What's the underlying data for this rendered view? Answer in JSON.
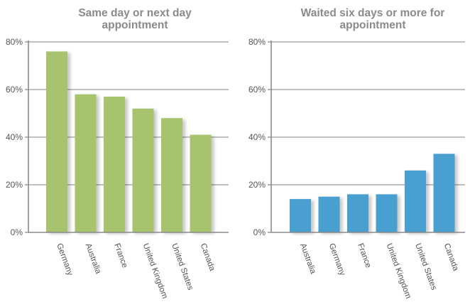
{
  "chart_data": [
    {
      "type": "bar",
      "title_lines": [
        "Same day or next day",
        "appointment"
      ],
      "categories": [
        "Germany",
        "Australia",
        "France",
        "United Kingdom",
        "United States",
        "Canada"
      ],
      "values": [
        76,
        58,
        57,
        52,
        48,
        41
      ],
      "yticks": [
        "0%",
        "20%",
        "40%",
        "60%",
        "80%"
      ],
      "ylim": [
        0,
        80
      ],
      "grid": true,
      "color": "#a8c36e"
    },
    {
      "type": "bar",
      "title_lines": [
        "Waited six days or more for",
        "appointment"
      ],
      "categories": [
        "Australia",
        "Germany",
        "France",
        "United Kingdom",
        "United States",
        "Canada"
      ],
      "values": [
        14,
        15,
        16,
        16,
        26,
        33
      ],
      "yticks": [
        "0%",
        "20%",
        "40%",
        "60%",
        "80%"
      ],
      "ylim": [
        0,
        80
      ],
      "grid": true,
      "color": "#4a9fd0"
    }
  ]
}
